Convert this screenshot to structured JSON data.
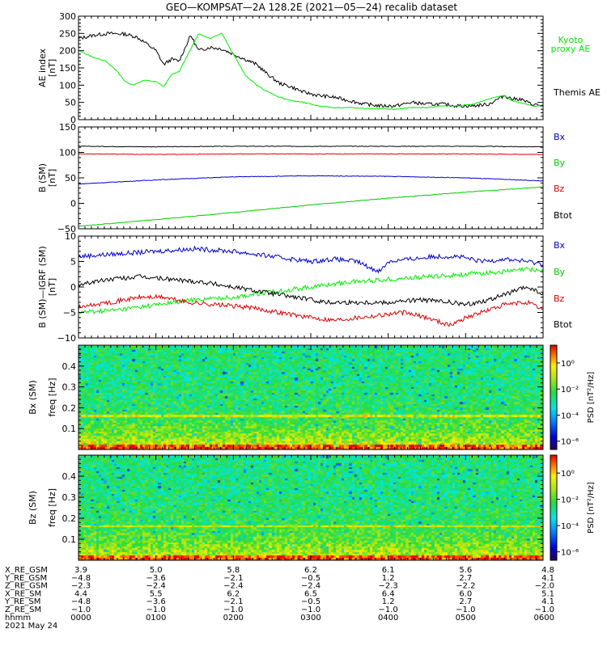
{
  "title": "GEO—KOMPSAT—2A 128.2E (2021—05—24) recalib dataset",
  "chart_data": [
    {
      "type": "line",
      "panel": "ae",
      "ylabel": "AE index",
      "yunit": "[nT]",
      "ylim": [
        0,
        300
      ],
      "yticks": [
        "0",
        "50",
        "100",
        "150",
        "200",
        "250",
        "300"
      ],
      "x_unit": "hours UT",
      "xlim": [
        0,
        6
      ],
      "series": [
        {
          "name": "Themis AE",
          "color": "#000000",
          "x": [
            0,
            0.2,
            0.4,
            0.6,
            0.75,
            0.85,
            1.0,
            1.1,
            1.2,
            1.3,
            1.45,
            1.55,
            1.7,
            1.85,
            2.0,
            2.15,
            2.3,
            2.45,
            2.6,
            2.75,
            2.9,
            3.1,
            3.3,
            3.5,
            3.7,
            3.9,
            4.1,
            4.3,
            4.5,
            4.7,
            4.9,
            5.1,
            5.3,
            5.5,
            5.6,
            5.7,
            5.85,
            6.0
          ],
          "y": [
            235,
            245,
            250,
            248,
            240,
            225,
            200,
            160,
            175,
            170,
            245,
            200,
            210,
            205,
            190,
            175,
            160,
            130,
            105,
            95,
            80,
            70,
            65,
            55,
            45,
            40,
            40,
            50,
            45,
            45,
            40,
            40,
            45,
            70,
            60,
            60,
            45,
            40
          ]
        },
        {
          "name": "Kyoto proxy AE",
          "color": "#00ee00",
          "x": [
            0,
            0.2,
            0.35,
            0.5,
            0.6,
            0.7,
            0.85,
            1.0,
            1.1,
            1.2,
            1.3,
            1.45,
            1.55,
            1.7,
            1.85,
            2.0,
            2.15,
            2.3,
            2.45,
            2.6,
            2.75,
            2.9,
            3.1,
            3.3,
            3.5,
            3.7,
            3.9,
            4.1,
            4.3,
            4.5,
            4.7,
            4.9,
            5.1,
            5.3,
            5.5,
            5.6,
            5.7,
            5.85,
            6.0
          ],
          "y": [
            200,
            180,
            170,
            140,
            110,
            100,
            115,
            110,
            95,
            130,
            140,
            205,
            250,
            235,
            250,
            190,
            130,
            100,
            80,
            65,
            55,
            50,
            40,
            35,
            35,
            32,
            32,
            30,
            35,
            35,
            40,
            40,
            45,
            60,
            70,
            55,
            50,
            40,
            40
          ]
        }
      ],
      "legend": [
        "Kyoto proxy AE",
        "Themis AE"
      ]
    },
    {
      "type": "line",
      "panel": "b",
      "ylabel": "B (SM)",
      "yunit": "[nT]",
      "ylim": [
        -50,
        150
      ],
      "yticks": [
        "−50",
        "0",
        "50",
        "100",
        "150"
      ],
      "xlim": [
        0,
        6
      ],
      "series": [
        {
          "name": "Bx",
          "color": "#0000cc",
          "x": [
            0,
            1,
            2,
            3,
            4,
            5,
            6
          ],
          "y": [
            38,
            46,
            52,
            54,
            53,
            50,
            44
          ]
        },
        {
          "name": "By",
          "color": "#00cc00",
          "x": [
            0,
            1,
            2,
            3,
            4,
            5,
            6
          ],
          "y": [
            -45,
            -32,
            -18,
            -3,
            10,
            22,
            32
          ]
        },
        {
          "name": "Bz",
          "color": "#dd0000",
          "x": [
            0,
            1,
            2,
            3,
            4,
            5,
            6
          ],
          "y": [
            97,
            96,
            97,
            97,
            97,
            97,
            96
          ]
        },
        {
          "name": "Btot",
          "color": "#000000",
          "x": [
            0,
            1,
            2,
            3,
            4,
            5,
            6
          ],
          "y": [
            112,
            111,
            112,
            112,
            112,
            112,
            111
          ]
        }
      ]
    },
    {
      "type": "line",
      "panel": "dB",
      "ylabel": "B (SM)—IGRF (SM)",
      "yunit": "[nT]",
      "ylim": [
        -10,
        10
      ],
      "yticks": [
        "−10",
        "−5",
        "0",
        "5",
        "10"
      ],
      "xlim": [
        0,
        6
      ],
      "series": [
        {
          "name": "Bx",
          "color": "#0000cc",
          "x": [
            0,
            0.5,
            1.0,
            1.5,
            2.0,
            2.5,
            3.0,
            3.3,
            3.6,
            3.8,
            3.9,
            4.0,
            4.3,
            4.6,
            4.9,
            5.2,
            5.5,
            5.8,
            6.0
          ],
          "y": [
            6,
            6.5,
            7,
            7.5,
            7,
            6,
            5,
            5.5,
            5,
            3.5,
            3.2,
            5,
            5.5,
            6,
            6,
            5,
            5.5,
            5,
            4.5
          ]
        },
        {
          "name": "By",
          "color": "#00ee00",
          "x": [
            0,
            0.5,
            1.0,
            1.5,
            2.0,
            2.5,
            3.0,
            3.5,
            4.0,
            4.5,
            5.0,
            5.5,
            5.8,
            6.0
          ],
          "y": [
            -5,
            -4.5,
            -3.5,
            -2.5,
            -2,
            -1,
            0,
            1,
            1.5,
            2,
            2.5,
            3,
            3.5,
            3.2
          ]
        },
        {
          "name": "Bz",
          "color": "#dd0000",
          "x": [
            0,
            0.4,
            0.8,
            1.1,
            1.4,
            1.8,
            2.2,
            2.6,
            3.0,
            3.3,
            3.6,
            3.9,
            4.2,
            4.5,
            4.8,
            5.0,
            5.3,
            5.5,
            5.8,
            6.0
          ],
          "y": [
            -4,
            -3,
            -2,
            -2,
            -3,
            -3.5,
            -4,
            -5,
            -6,
            -6.5,
            -6,
            -5.5,
            -5,
            -6,
            -7.5,
            -6,
            -4.5,
            -3.5,
            -3,
            -4.5
          ]
        },
        {
          "name": "Btot",
          "color": "#000000",
          "x": [
            0,
            0.4,
            0.8,
            1.2,
            1.6,
            2.0,
            2.4,
            2.8,
            3.2,
            3.6,
            4.0,
            4.4,
            4.8,
            5.0,
            5.3,
            5.6,
            5.8,
            6.0
          ],
          "y": [
            0.5,
            1.5,
            2,
            1.5,
            1,
            0,
            -1,
            -2,
            -3,
            -3,
            -3,
            -2.5,
            -3,
            -3.5,
            -2.5,
            -1,
            0,
            -1.5
          ]
        }
      ]
    },
    {
      "type": "heatmap",
      "panel": "spec_bx",
      "ylabel": "Bx (SM)",
      "yunit": "freq [Hz]",
      "ylim": [
        0,
        0.5
      ],
      "yticks": [
        "0.1",
        "0.2",
        "0.3",
        "0.4"
      ],
      "colorbar_label": "PSD [nT²/Hz]",
      "colorbar_ticks": [
        "10⁰",
        "10⁻²",
        "10⁻⁴",
        "10⁻⁶"
      ]
    },
    {
      "type": "heatmap",
      "panel": "spec_bz",
      "ylabel": "Bz (SM)",
      "yunit": "freq [Hz]",
      "ylim": [
        0,
        0.5
      ],
      "yticks": [
        "0.1",
        "0.2",
        "0.3",
        "0.4"
      ],
      "colorbar_label": "PSD [nT²/Hz]",
      "colorbar_ticks": [
        "10⁰",
        "10⁻²",
        "10⁻⁴",
        "10⁻⁶"
      ]
    }
  ],
  "labels": {
    "kyoto": [
      "Kyoto",
      "proxy AE"
    ],
    "themis": "Themis AE",
    "bx": "Bx",
    "by": "By",
    "bz": "Bz",
    "btot": "Btot"
  },
  "ephemeris": {
    "rows": [
      {
        "name": "X_RE_GSM",
        "values": [
          "3.9",
          "5.0",
          "5.8",
          "6.2",
          "6.1",
          "5.6",
          "4.8"
        ]
      },
      {
        "name": "Y_RE_GSM",
        "values": [
          "−4.8",
          "−3.6",
          "−2.1",
          "−0.5",
          "1.2",
          "2.7",
          "4.1"
        ]
      },
      {
        "name": "Z_RE_GSM",
        "values": [
          "−2.3",
          "−2.4",
          "−2.4",
          "−2.4",
          "−2.3",
          "−2.2",
          "−2.0"
        ]
      },
      {
        "name": "X_RE_SM",
        "values": [
          "4.4",
          "5.5",
          "6.2",
          "6.5",
          "6.4",
          "6.0",
          "5.1"
        ]
      },
      {
        "name": "Y_RE_SM",
        "values": [
          "−4.8",
          "−3.6",
          "−2.1",
          "−0.5",
          "1.2",
          "2.7",
          "4.1"
        ]
      },
      {
        "name": "Z_RE_SM",
        "values": [
          "−1.0",
          "−1.0",
          "−1.0",
          "−1.0",
          "−1.0",
          "−1.0",
          "−1.0"
        ]
      },
      {
        "name": "hhmm",
        "values": [
          "0000",
          "0100",
          "0200",
          "0300",
          "0400",
          "0500",
          "0600"
        ]
      }
    ],
    "date": "2021 May 24"
  }
}
